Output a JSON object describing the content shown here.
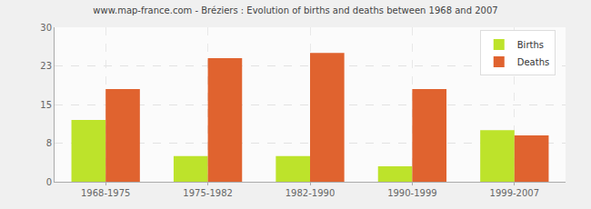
{
  "chart_data": {
    "type": "bar",
    "title": "www.map-france.com - Bréziers : Evolution of births and deaths between 1968 and 2007",
    "categories": [
      "1968-1975",
      "1975-1982",
      "1982-1990",
      "1990-1999",
      "1999-2007"
    ],
    "series": [
      {
        "name": "Births",
        "color": "#bde32b",
        "values": [
          12,
          5,
          5,
          3,
          10
        ]
      },
      {
        "name": "Deaths",
        "color": "#e0632f",
        "values": [
          18,
          24,
          25,
          18,
          9
        ]
      }
    ],
    "ylim": [
      0,
      30
    ],
    "yticks": [
      0,
      {
        "value": 7.5,
        "label": "8"
      },
      15,
      {
        "value": 22.5,
        "label": "23"
      },
      30
    ],
    "grid": true,
    "legend": "top-right"
  }
}
